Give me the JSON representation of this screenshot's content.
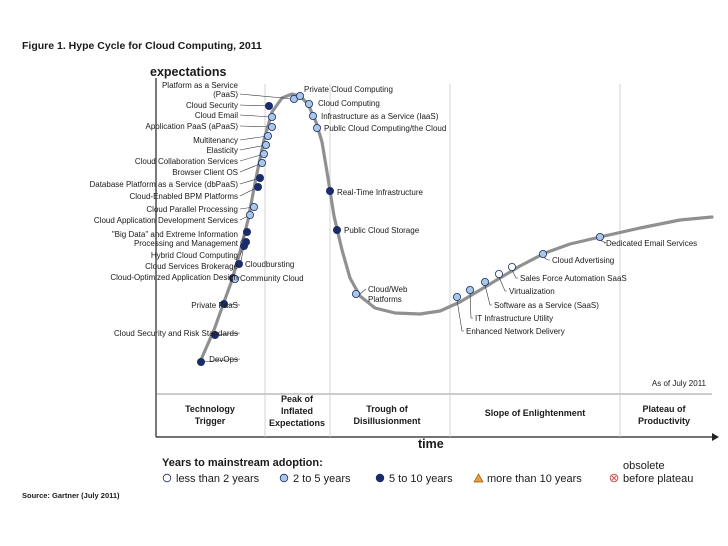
{
  "figure_title": "Figure 1. Hype Cycle for Cloud Computing, 2011",
  "source": "Source: Gartner (July 2011)",
  "axes": {
    "y_label": "expectations",
    "x_label": "time"
  },
  "as_of": "As of July 2011",
  "phases": [
    {
      "name": "Technology Trigger",
      "lines": [
        "Technology",
        "Trigger"
      ]
    },
    {
      "name": "Peak of Inflated Expectations",
      "lines": [
        "Peak of",
        "Inflated",
        "Expectations"
      ]
    },
    {
      "name": "Trough of Disillusionment",
      "lines": [
        "Trough of",
        "Disillusionment"
      ]
    },
    {
      "name": "Slope of Enlightenment",
      "lines": [
        "Slope of Enlightenment"
      ]
    },
    {
      "name": "Plateau of Productivity",
      "lines": [
        "Plateau of",
        "Productivity"
      ]
    }
  ],
  "legend": {
    "title": "Years to mainstream adoption:",
    "items": [
      {
        "label": "less than 2 years",
        "symbol": "circle",
        "color": "#ffffff"
      },
      {
        "label": "2 to 5 years",
        "symbol": "circle",
        "color": "#a9c8e6"
      },
      {
        "label": "5 to 10 years",
        "symbol": "circle",
        "color": "#1b2c6b"
      },
      {
        "label": "more than 10 years",
        "symbol": "triangle",
        "color": "#e8a13a"
      },
      {
        "label": "obsolete before plateau",
        "lines": [
          "obsolete",
          "before plateau"
        ],
        "symbol": "crossed-circle",
        "color": "#d9534f"
      }
    ]
  },
  "colors": {
    "curve": "#909090",
    "dark": "#1b2c6b",
    "light": "#a9c8e6",
    "white": "#ffffff"
  },
  "technologies": {
    "left": [
      {
        "label": "Platform as a Service (PaaS)",
        "lines": [
          "Platform as a Service",
          "(PaaS)"
        ],
        "years": "2 to 5 years"
      },
      {
        "label": "Cloud Security",
        "years": "5 to 10 years"
      },
      {
        "label": "Cloud Email",
        "years": "2 to 5 years"
      },
      {
        "label": "Application PaaS (aPaaS)",
        "years": "2 to 5 years"
      },
      {
        "label": "Multitenancy",
        "years": "2 to 5 years"
      },
      {
        "label": "Elasticity",
        "years": "2 to 5 years"
      },
      {
        "label": "Cloud Collaboration Services",
        "years": "2 to 5 years"
      },
      {
        "label": "Browser Client OS",
        "years": "2 to 5 years"
      },
      {
        "label": "Database Platform as a Service (dbPaaS)",
        "years": "5 to 10 years"
      },
      {
        "label": "Cloud-Enabled BPM Platforms",
        "years": "5 to 10 years"
      },
      {
        "label": "Cloud Parallel Processing",
        "years": "2 to 5 years"
      },
      {
        "label": "Cloud Application Development Services",
        "years": "2 to 5 years"
      },
      {
        "label": "\"Big Data\" and Extreme Information Processing and Management",
        "lines": [
          "\"Big Data\" and Extreme Information",
          "Processing and Management"
        ],
        "years": "5 to 10 years"
      },
      {
        "label": "Hybrid Cloud Computing",
        "years": "5 to 10 years"
      },
      {
        "label": "Cloud Services Brokerage",
        "years": "5 to 10 years"
      },
      {
        "label": "Cloud-Optimized Application Design",
        "years": "5 to 10 years"
      },
      {
        "label": "Private PaaS",
        "years": "5 to 10 years"
      },
      {
        "label": "Cloud Security and Risk Standards",
        "years": "5 to 10 years"
      },
      {
        "label": "DevOps",
        "years": "5 to 10 years"
      }
    ],
    "right": [
      {
        "label": "Private Cloud Computing",
        "years": "2 to 5 years"
      },
      {
        "label": "Cloud Computing",
        "years": "2 to 5 years"
      },
      {
        "label": "Infrastructure as a Service (IaaS)",
        "years": "2 to 5 years"
      },
      {
        "label": "Public Cloud Computing/the Cloud",
        "years": "2 to 5 years"
      },
      {
        "label": "Real-Time Infrastructure",
        "years": "5 to 10 years"
      },
      {
        "label": "Public Cloud Storage",
        "years": "5 to 10 years"
      },
      {
        "label": "Cloudbursting",
        "years": "5 to 10 years"
      },
      {
        "label": "Community Cloud",
        "years": "2 to 5 years"
      },
      {
        "label": "Cloud/Web Platforms",
        "lines": [
          "Cloud/Web",
          "Platforms"
        ],
        "years": "2 to 5 years"
      }
    ],
    "slope": [
      {
        "label": "Dedicated Email Services",
        "years": "2 to 5 years"
      },
      {
        "label": "Cloud Advertising",
        "years": "2 to 5 years"
      },
      {
        "label": "Sales Force Automation SaaS",
        "years": "less than 2 years"
      },
      {
        "label": "Virtualization",
        "years": "less than 2 years"
      },
      {
        "label": "Software as a Service (SaaS)",
        "years": "2 to 5 years"
      },
      {
        "label": "IT Infrastructure Utility",
        "years": "2 to 5 years"
      },
      {
        "label": "Enhanced Network Delivery",
        "years": "2 to 5 years"
      }
    ]
  }
}
